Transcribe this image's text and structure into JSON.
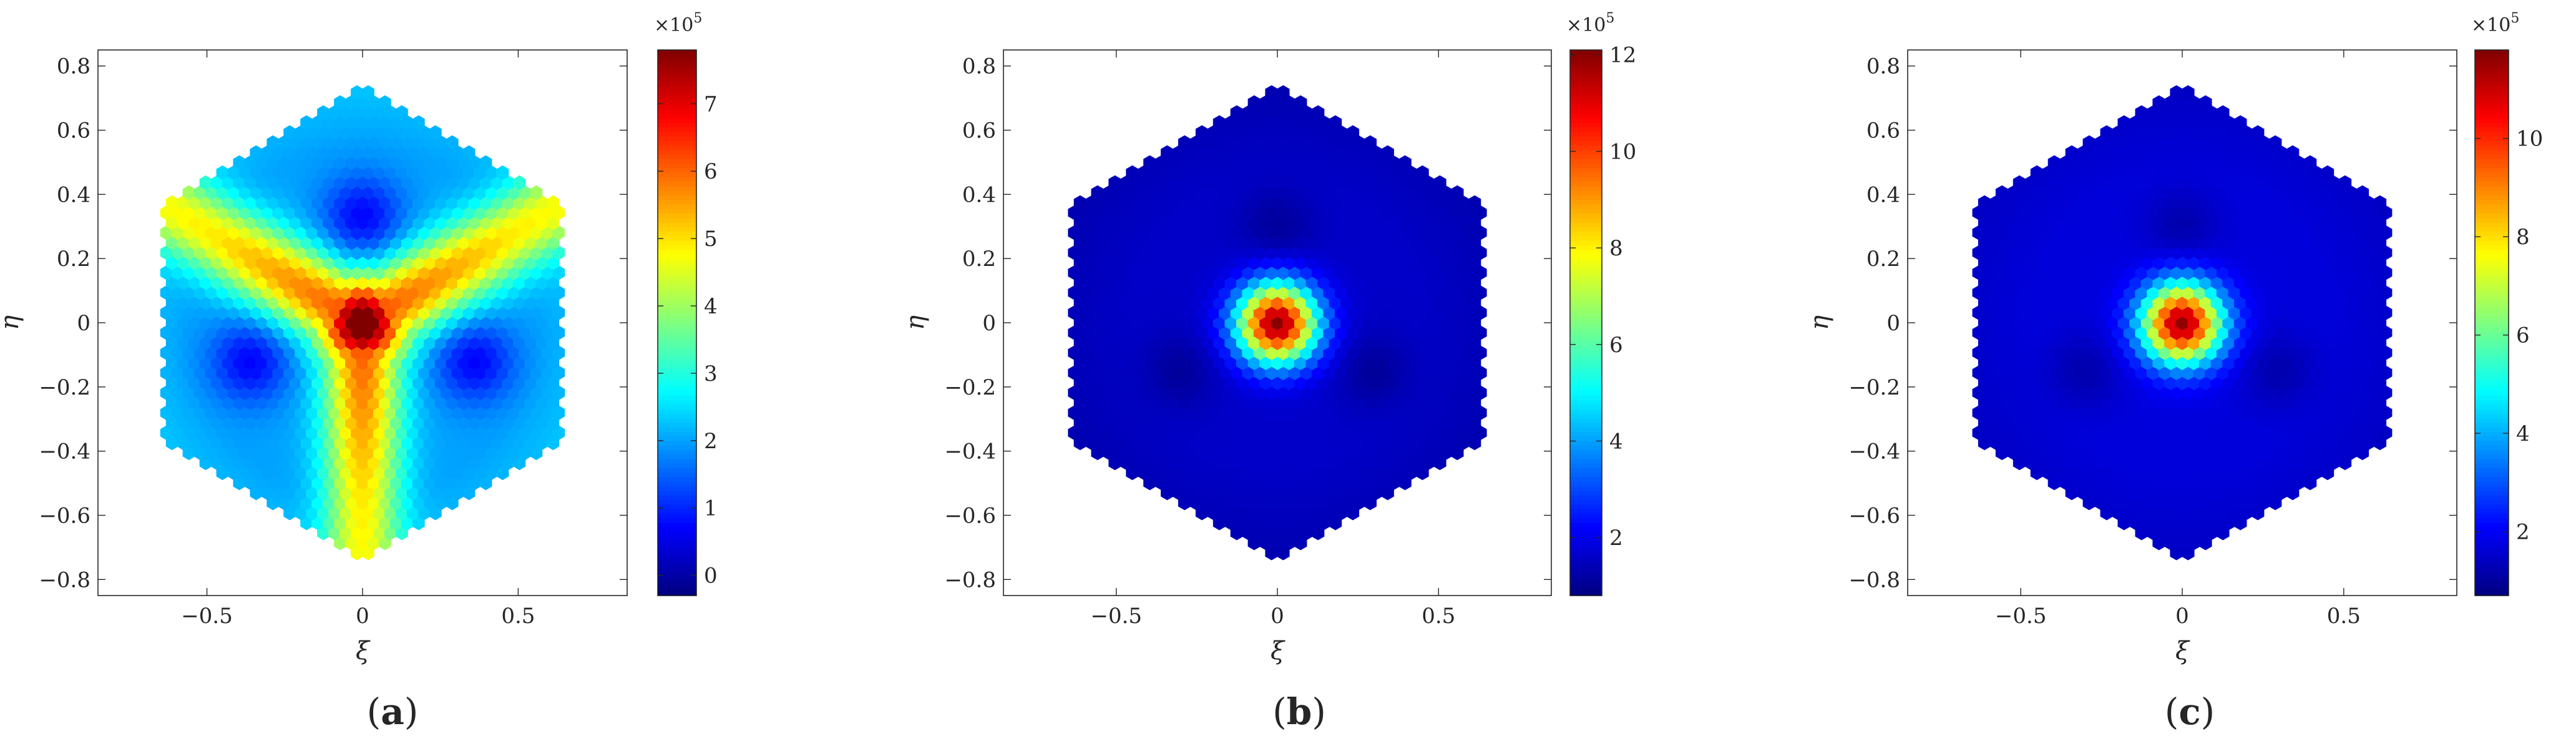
{
  "chart_data": [
    {
      "panel": "a",
      "caption_letter": "a",
      "type": "heatmap",
      "pattern": "three-arm star of high values centred at origin, arms toward top-left, top-right and bottom",
      "xlabel": "ξ",
      "ylabel": "η",
      "xlim": [
        -0.85,
        0.85
      ],
      "ylim": [
        -0.85,
        0.85
      ],
      "xticks": [
        -0.5,
        0,
        0.5
      ],
      "xtick_labels": [
        "−0.5",
        "0",
        "0.5"
      ],
      "yticks": [
        0.8,
        0.6,
        0.4,
        0.2,
        0,
        -0.2,
        -0.4,
        -0.6,
        -0.8
      ],
      "ytick_labels": [
        "0.8",
        "0.6",
        "0.4",
        "0.2",
        "0",
        "−0.2",
        "−0.4",
        "−0.6",
        "−0.8"
      ],
      "colorbar_range": [
        -0.3,
        7.8
      ],
      "colorbar_ticks": [
        0,
        1,
        2,
        3,
        4,
        5,
        6,
        7
      ],
      "colorbar_tick_labels": [
        "0",
        "1",
        "2",
        "3",
        "4",
        "5",
        "6",
        "7"
      ],
      "colorbar_multiplier": "×10",
      "colorbar_exponent": "5",
      "domain_radius": 0.74,
      "peak_value": 7.6,
      "background_value": 1.6
    },
    {
      "panel": "b",
      "caption_letter": "b",
      "type": "heatmap",
      "pattern": "single circular peak centred at origin",
      "xlabel": "ξ",
      "ylabel": "η",
      "xlim": [
        -0.85,
        0.85
      ],
      "ylim": [
        -0.85,
        0.85
      ],
      "xticks": [
        -0.5,
        0,
        0.5
      ],
      "xtick_labels": [
        "−0.5",
        "0",
        "0.5"
      ],
      "yticks": [
        0.8,
        0.6,
        0.4,
        0.2,
        0,
        -0.2,
        -0.4,
        -0.6,
        -0.8
      ],
      "ytick_labels": [
        "0.8",
        "0.6",
        "0.4",
        "0.2",
        "0",
        "−0.2",
        "−0.4",
        "−0.6",
        "−0.8"
      ],
      "colorbar_range": [
        0.8,
        12.1
      ],
      "colorbar_ticks": [
        2,
        4,
        6,
        8,
        10,
        12
      ],
      "colorbar_tick_labels": [
        "2",
        "4",
        "6",
        "8",
        "10",
        "12"
      ],
      "colorbar_multiplier": "×10",
      "colorbar_exponent": "5",
      "domain_radius": 0.74,
      "peak_value": 12.0,
      "background_value": 1.6
    },
    {
      "panel": "c",
      "caption_letter": "c",
      "type": "heatmap",
      "pattern": "single circular peak centred at origin",
      "xlabel": "ξ",
      "ylabel": "η",
      "xlim": [
        -0.85,
        0.85
      ],
      "ylim": [
        -0.85,
        0.85
      ],
      "xticks": [
        -0.5,
        0,
        0.5
      ],
      "xtick_labels": [
        "−0.5",
        "0",
        "0.5"
      ],
      "yticks": [
        0.8,
        0.6,
        0.4,
        0.2,
        0,
        -0.2,
        -0.4,
        -0.6,
        -0.8
      ],
      "ytick_labels": [
        "0.8",
        "0.6",
        "0.4",
        "0.2",
        "0",
        "−0.2",
        "−0.4",
        "−0.6",
        "−0.8"
      ],
      "colorbar_range": [
        0.7,
        11.8
      ],
      "colorbar_ticks": [
        2,
        4,
        6,
        8,
        10
      ],
      "colorbar_tick_labels": [
        "2",
        "4",
        "6",
        "8",
        "10"
      ],
      "colorbar_multiplier": "×10",
      "colorbar_exponent": "5",
      "domain_radius": 0.74,
      "peak_value": 11.6,
      "background_value": 1.7
    }
  ]
}
